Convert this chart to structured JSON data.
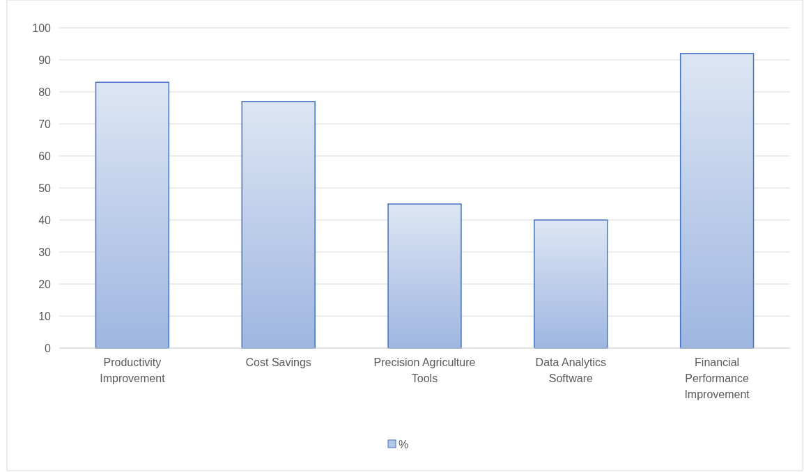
{
  "chart_data": {
    "type": "bar",
    "categories": [
      "Productivity Improvement",
      "Cost Savings",
      "Precision Agriculture Tools",
      "Data Analytics Software",
      "Financial Performance Improvement"
    ],
    "series": [
      {
        "name": "%",
        "color": "#4472c4",
        "values": [
          83,
          77,
          45,
          40,
          92
        ]
      }
    ],
    "ylim": [
      0,
      100
    ],
    "yticks": [
      0,
      10,
      20,
      30,
      40,
      50,
      60,
      70,
      80,
      90,
      100
    ],
    "grid": "y",
    "legend": "bottom"
  }
}
